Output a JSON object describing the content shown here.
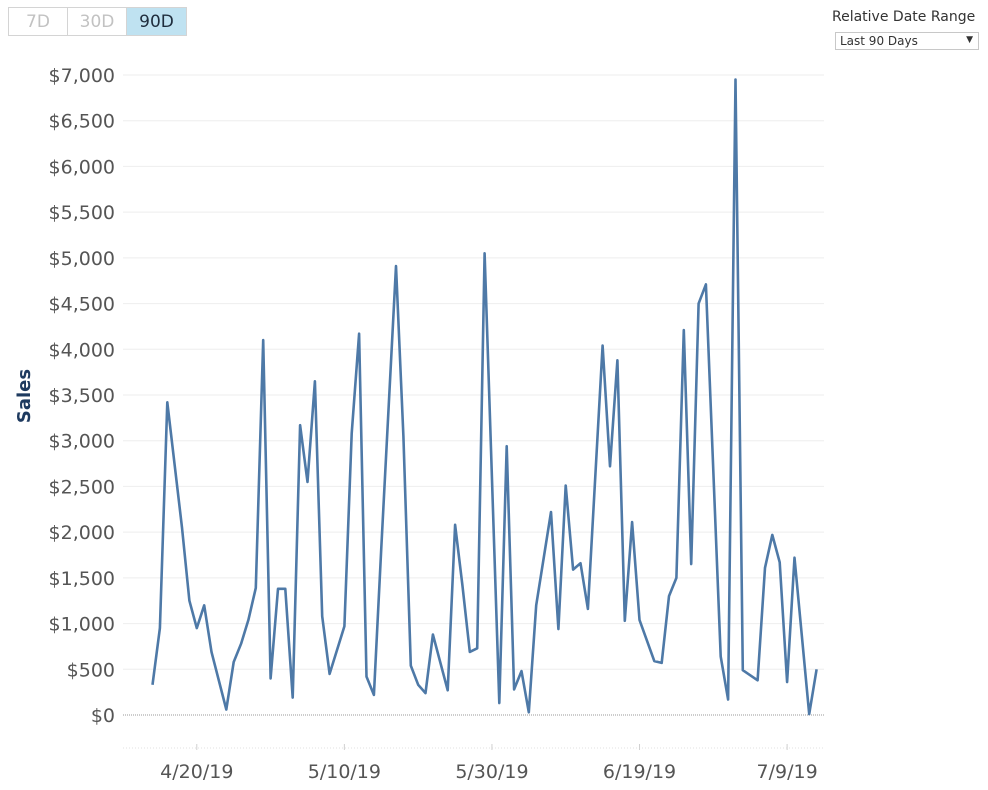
{
  "range_buttons": [
    {
      "label": "7D",
      "active": false
    },
    {
      "label": "30D",
      "active": false
    },
    {
      "label": "90D",
      "active": true
    }
  ],
  "filter": {
    "title": "Relative Date Range",
    "selected": "Last 90 Days"
  },
  "chart_data": {
    "type": "line",
    "title": "",
    "xlabel": "",
    "ylabel": "Sales",
    "ylim": [
      0,
      7000
    ],
    "grid": true,
    "line_color": "#4e79a7",
    "y_ticks": [
      0,
      500,
      1000,
      1500,
      2000,
      2500,
      3000,
      3500,
      4000,
      4500,
      5000,
      5500,
      6000,
      6500,
      7000
    ],
    "y_tick_labels": [
      "$0",
      "$500",
      "$1,000",
      "$1,500",
      "$2,000",
      "$2,500",
      "$3,000",
      "$3,500",
      "$4,000",
      "$4,500",
      "$5,000",
      "$5,500",
      "$6,000",
      "$6,500",
      "$7,000"
    ],
    "x_range": [
      "2019-04-10",
      "2019-07-14"
    ],
    "x_ticks": [
      "2019-04-20",
      "2019-05-10",
      "2019-05-30",
      "2019-06-19",
      "2019-07-09"
    ],
    "x_tick_labels": [
      "4/20/19",
      "5/10/19",
      "5/30/19",
      "6/19/19",
      "7/9/19"
    ],
    "x": [
      "2019-04-14",
      "2019-04-15",
      "2019-04-16",
      "2019-04-18",
      "2019-04-19",
      "2019-04-20",
      "2019-04-21",
      "2019-04-22",
      "2019-04-24",
      "2019-04-25",
      "2019-04-26",
      "2019-04-27",
      "2019-04-28",
      "2019-04-29",
      "2019-04-30",
      "2019-05-01",
      "2019-05-02",
      "2019-05-03",
      "2019-05-04",
      "2019-05-05",
      "2019-05-06",
      "2019-05-07",
      "2019-05-08",
      "2019-05-10",
      "2019-05-11",
      "2019-05-12",
      "2019-05-13",
      "2019-05-14",
      "2019-05-15",
      "2019-05-17",
      "2019-05-18",
      "2019-05-19",
      "2019-05-20",
      "2019-05-21",
      "2019-05-22",
      "2019-05-24",
      "2019-05-25",
      "2019-05-26",
      "2019-05-27",
      "2019-05-28",
      "2019-05-29",
      "2019-05-31",
      "2019-06-01",
      "2019-06-02",
      "2019-06-03",
      "2019-06-04",
      "2019-06-05",
      "2019-06-07",
      "2019-06-08",
      "2019-06-09",
      "2019-06-10",
      "2019-06-11",
      "2019-06-12",
      "2019-06-14",
      "2019-06-15",
      "2019-06-16",
      "2019-06-17",
      "2019-06-18",
      "2019-06-19",
      "2019-06-21",
      "2019-06-22",
      "2019-06-23",
      "2019-06-24",
      "2019-06-25",
      "2019-06-26",
      "2019-06-27",
      "2019-06-28",
      "2019-06-30",
      "2019-07-01",
      "2019-07-02",
      "2019-07-03",
      "2019-07-05",
      "2019-07-06",
      "2019-07-07",
      "2019-07-08",
      "2019-07-09",
      "2019-07-10",
      "2019-07-12",
      "2019-07-13"
    ],
    "series": [
      {
        "values": [
          330,
          950,
          3420,
          2050,
          1250,
          950,
          1200,
          690,
          60,
          580,
          780,
          1040,
          1390,
          4100,
          400,
          1380,
          1380,
          190,
          3170,
          2550,
          3650,
          1080,
          450,
          970,
          3080,
          4170,
          420,
          220,
          1830,
          4910,
          3050,
          540,
          330,
          240,
          880,
          270,
          2080,
          1420,
          690,
          730,
          5050,
          130,
          2940,
          280,
          480,
          30,
          1200,
          2220,
          940,
          2510,
          1590,
          1660,
          1160,
          4040,
          2720,
          3880,
          1030,
          2110,
          1040,
          590,
          570,
          1300,
          1500,
          4210,
          1650,
          4500,
          4710,
          640,
          170,
          6950,
          490,
          380,
          1610,
          1970,
          1670,
          360,
          1720,
          10,
          500
        ]
      }
    ]
  }
}
